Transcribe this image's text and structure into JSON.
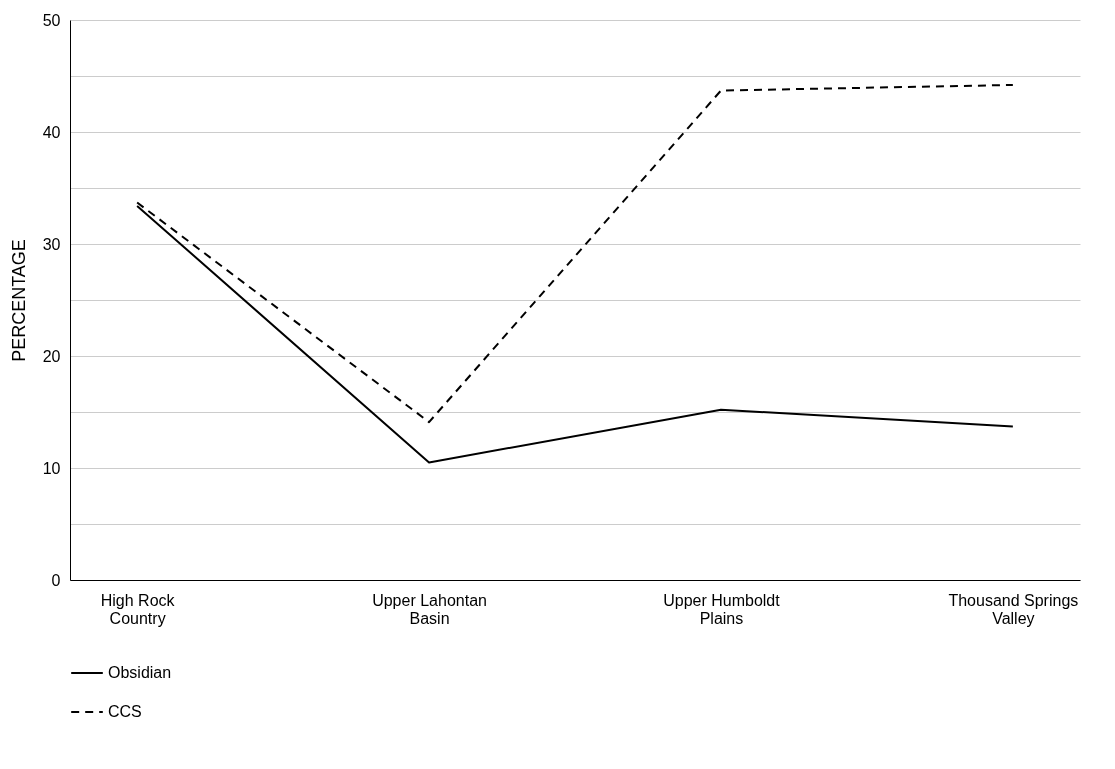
{
  "chart_data": {
    "type": "line",
    "ylabel": "PERCENTAGE",
    "categories": [
      "High Rock Country",
      "Upper Lahontan Basin",
      "Upper Humboldt Plains",
      "Thousand Springs Valley"
    ],
    "series": [
      {
        "name": "Obsidian",
        "color": "#000000",
        "line_style": "solid",
        "values": [
          33.4,
          10.5,
          15.2,
          13.7
        ]
      },
      {
        "name": "CCS",
        "color": "#000000",
        "line_style": "dashed",
        "values": [
          33.7,
          14.1,
          43.7,
          44.2
        ]
      }
    ],
    "ylim": [
      0,
      50
    ],
    "yticks": [
      0,
      {
        "value": 5,
        "label": null
      },
      10,
      {
        "value": 15,
        "label": null
      },
      20,
      {
        "value": 25,
        "label": null
      },
      30,
      {
        "value": 35,
        "label": null
      },
      40,
      {
        "value": 45,
        "label": null
      },
      50
    ],
    "grid": "y",
    "legend": "bottom",
    "marker": "none"
  }
}
